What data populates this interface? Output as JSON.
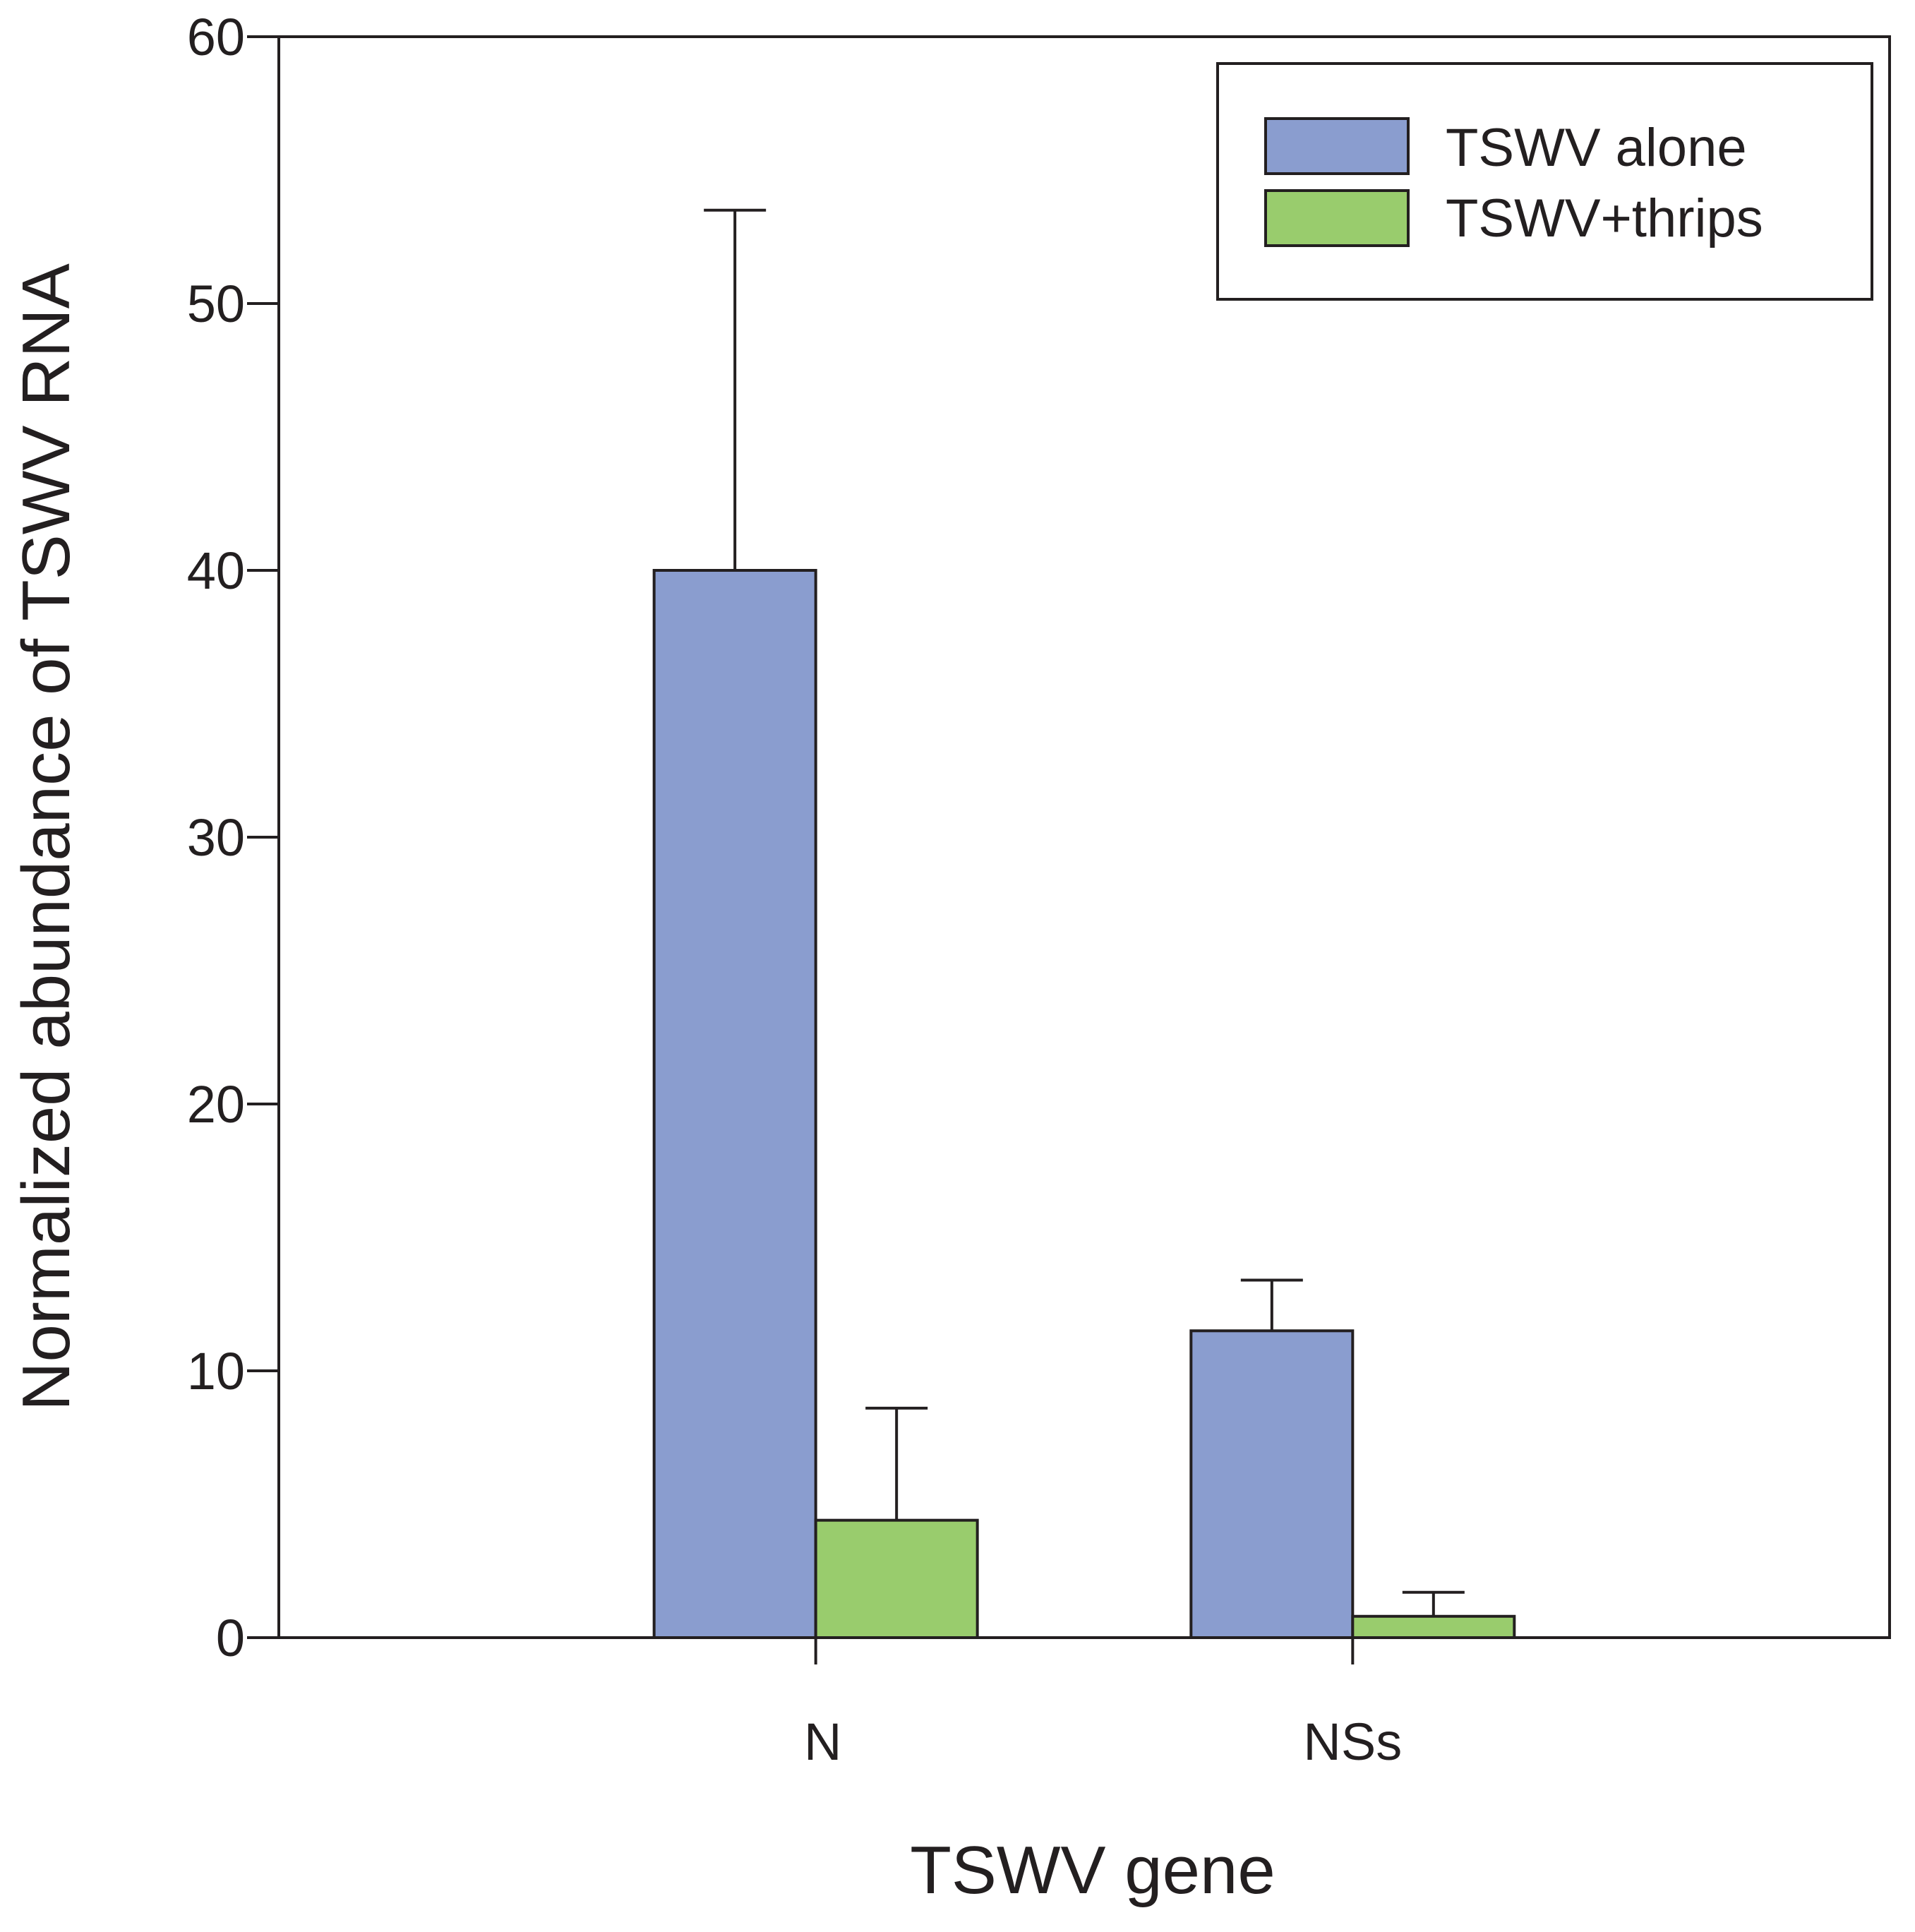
{
  "chart_data": {
    "type": "bar",
    "title": "",
    "xlabel": "TSWV gene",
    "ylabel": "Normalized abundance of TSWV RNA",
    "ylim": [
      0,
      60
    ],
    "yticks": [
      0,
      10,
      20,
      30,
      40,
      50,
      60
    ],
    "ytick_labels": [
      "0",
      "10",
      "20",
      "30",
      "40",
      "50",
      "60"
    ],
    "categories": [
      "N",
      "NSs"
    ],
    "series": [
      {
        "name": "TSWV alone",
        "color": "#8a9dcf",
        "values": [
          40.0,
          11.5
        ],
        "error_upper": [
          13.5,
          1.9
        ]
      },
      {
        "name": "TSWV+thrips",
        "color": "#99cc6d",
        "values": [
          4.4,
          0.8
        ],
        "error_upper": [
          4.2,
          0.9
        ]
      }
    ],
    "grid": false,
    "legend_position": "top-right"
  }
}
